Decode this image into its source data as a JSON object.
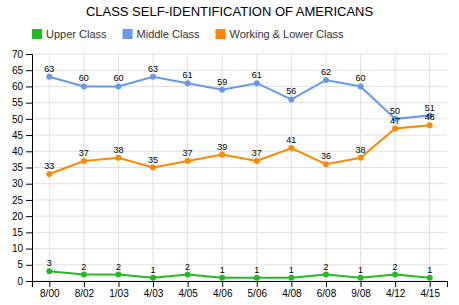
{
  "chart_data": {
    "type": "line",
    "title": "CLASS SELF-IDENTIFICATION OF AMERICANS",
    "categories": [
      "8/00",
      "8/02",
      "1/03",
      "4/03",
      "4/05",
      "4/06",
      "5/06",
      "4/08",
      "6/08",
      "9/08",
      "4/12",
      "4/15"
    ],
    "series": [
      {
        "name": "Upper Class",
        "color": "#22bb22",
        "values": [
          3,
          2,
          2,
          1,
          2,
          1,
          1,
          1,
          2,
          1,
          2,
          1
        ]
      },
      {
        "name": "Middle Class",
        "color": "#6699ee",
        "values": [
          63,
          60,
          60,
          63,
          61,
          59,
          61,
          56,
          62,
          60,
          50,
          51
        ]
      },
      {
        "name": "Working & Lower Class",
        "color": "#ff8800",
        "values": [
          33,
          37,
          38,
          35,
          37,
          39,
          37,
          41,
          36,
          38,
          47,
          48
        ]
      }
    ],
    "ylim": [
      0,
      70
    ],
    "yticks": [
      0,
      5,
      10,
      15,
      20,
      25,
      30,
      35,
      40,
      45,
      50,
      55,
      60,
      65,
      70
    ],
    "grid": true,
    "data_labels": true,
    "marker": "circle"
  }
}
